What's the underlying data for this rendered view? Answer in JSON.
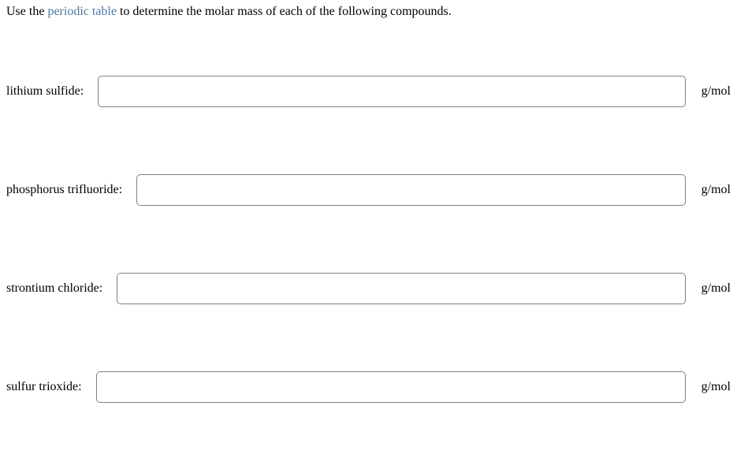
{
  "instruction": {
    "prefix": "Use the ",
    "link_text": "periodic table",
    "suffix": " to determine the molar mass of each of the following compounds."
  },
  "rows": [
    {
      "label": "lithium sulfide:",
      "value": "",
      "unit": "g/mol"
    },
    {
      "label": "phosphorus trifluoride:",
      "value": "",
      "unit": "g/mol"
    },
    {
      "label": "strontium chloride:",
      "value": "",
      "unit": "g/mol"
    },
    {
      "label": "sulfur trioxide:",
      "value": "",
      "unit": "g/mol"
    }
  ],
  "style": {
    "text_color": "#000000",
    "link_color": "#4a7ba6",
    "background_color": "#ffffff",
    "input_border_color": "#808080",
    "input_border_radius": 5,
    "font_family": "Georgia, 'Times New Roman', serif",
    "font_size_pt": 12
  }
}
